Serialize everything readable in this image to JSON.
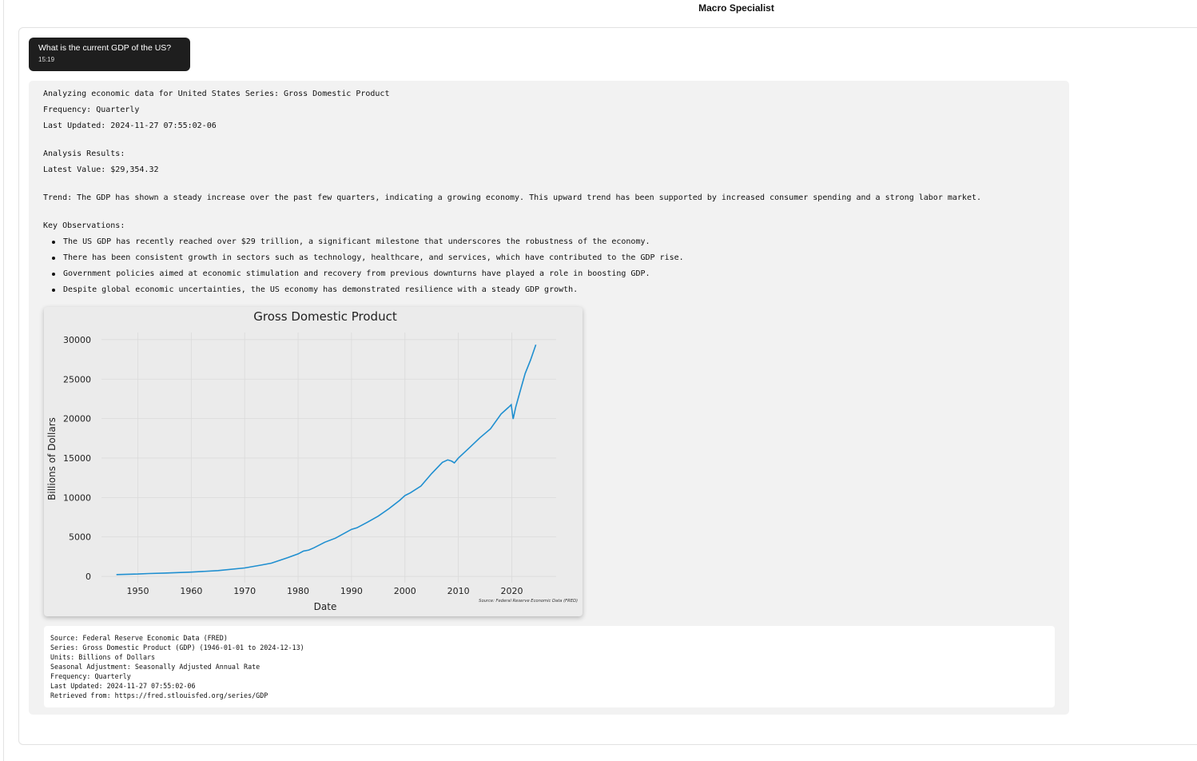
{
  "app": {
    "title": "Macro Specialist"
  },
  "user_message": {
    "text": "What is the current GDP of the US?",
    "time": "15:19"
  },
  "response": {
    "header_line": "Analyzing economic data for United States Series: Gross Domestic Product",
    "frequency": "Frequency: Quarterly",
    "last_updated": "Last Updated: 2024-11-27 07:55:02-06",
    "analysis_heading": "Analysis Results:",
    "latest_value": "Latest Value: $29,354.32",
    "trend": "Trend: The GDP has shown a steady increase over the past few quarters, indicating a growing economy. This upward trend has been supported by increased consumer spending and a strong labor market.",
    "observations_heading": "Key Observations:",
    "observations": [
      "The US GDP has recently reached over $29 trillion, a significant milestone that underscores the robustness of the economy.",
      "There has been consistent growth in sectors such as technology, healthcare, and services, which have contributed to the GDP rise.",
      "Government policies aimed at economic stimulation and recovery from previous downturns have played a role in boosting GDP.",
      "Despite global economic uncertainties, the US economy has demonstrated resilience with a steady GDP growth."
    ]
  },
  "chart_data": {
    "type": "line",
    "title": "Gross Domestic Product",
    "xlabel": "Date",
    "ylabel": "Billions of Dollars",
    "source_note": "Source: Federal Reserve Economic Data (FRED)",
    "xlim": [
      1943.2,
      2028.3
    ],
    "ylim": [
      -800,
      30900
    ],
    "x_ticks": [
      1950,
      1960,
      1970,
      1980,
      1990,
      2000,
      2010,
      2020
    ],
    "y_ticks": [
      0,
      5000,
      10000,
      15000,
      20000,
      25000,
      30000
    ],
    "grid": true,
    "line_color": "#1f8fd0",
    "series": [
      {
        "x": [
          1946,
          1948,
          1950,
          1952,
          1955,
          1960,
          1965,
          1970,
          1973,
          1975,
          1978,
          1980,
          1981,
          1982,
          1983,
          1985,
          1987,
          1990,
          1991,
          1993,
          1995,
          1997,
          1999,
          2000,
          2001,
          2003,
          2005,
          2007,
          2008,
          2008.75,
          2009.25,
          2010,
          2012,
          2014,
          2016,
          2018,
          2019.5,
          2019.9,
          2020.25,
          2020.75,
          2021.5,
          2022.5,
          2023.5,
          2024.5
        ],
        "y": [
          228,
          275,
          300,
          360,
          426,
          542,
          740,
          1073,
          1426,
          1685,
          2357,
          2857,
          3207,
          3345,
          3638,
          4339,
          4855,
          5963,
          6158,
          6878,
          7640,
          8577,
          9631,
          10252,
          10581,
          11458,
          13039,
          14452,
          14770,
          14600,
          14381,
          14992,
          16254,
          17550,
          18695,
          20580,
          21500,
          21750,
          19950,
          21480,
          23300,
          25700,
          27400,
          29354
        ]
      }
    ]
  },
  "source_block": {
    "lines": [
      "Source: Federal Reserve Economic Data (FRED)",
      "Series: Gross Domestic Product (GDP) (1946-01-01 to 2024-12-13)",
      "Units: Billions of Dollars",
      "Seasonal Adjustment: Seasonally Adjusted Annual Rate",
      "Frequency: Quarterly",
      "Last Updated: 2024-11-27 07:55:02-06",
      "Retrieved from: https://fred.stlouisfed.org/series/GDP"
    ]
  }
}
